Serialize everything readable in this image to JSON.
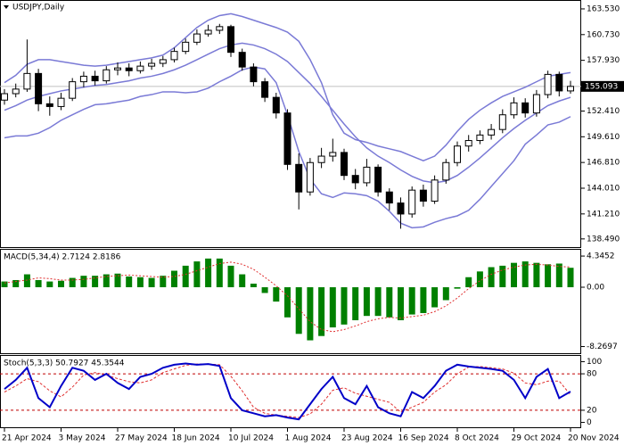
{
  "chart_data": [
    {
      "type": "candlestick",
      "title": "USDJPY,Daily",
      "categories": [
        "21 Apr 2024",
        null,
        null,
        null,
        null,
        "3 May 2024",
        null,
        null,
        null,
        null,
        "27 May 2024",
        null,
        null,
        null,
        null,
        "18 Jun 2024",
        null,
        null,
        null,
        null,
        "10 Jul 2024",
        null,
        null,
        null,
        null,
        "1 Aug 2024",
        null,
        null,
        null,
        null,
        "23 Aug 2024",
        null,
        null,
        null,
        null,
        "16 Sep 2024",
        null,
        null,
        null,
        null,
        "8 Oct 2024",
        null,
        null,
        null,
        null,
        "29 Oct 2024",
        null,
        null,
        null,
        null,
        "20 Nov 2024"
      ],
      "open": [
        153.6,
        154.3,
        154.8,
        156.5,
        153.2,
        152.9,
        153.8,
        155.6,
        156.2,
        155.7,
        156.9,
        157.1,
        156.8,
        157.3,
        157.6,
        158.0,
        158.9,
        159.9,
        160.8,
        161.2,
        161.6,
        158.8,
        157.2,
        155.6,
        153.9,
        152.2,
        146.6,
        143.6,
        146.8,
        147.5,
        147.9,
        145.4,
        144.6,
        146.3,
        143.6,
        142.4,
        141.2,
        143.8,
        142.6,
        144.9,
        146.8,
        148.6,
        149.2,
        149.8,
        150.4,
        152.0,
        153.3,
        152.2,
        154.2,
        156.4,
        154.6
      ],
      "high": [
        154.8,
        155.4,
        160.2,
        157.0,
        154.0,
        154.4,
        156.0,
        156.7,
        156.8,
        157.3,
        157.7,
        157.6,
        157.8,
        158.1,
        158.4,
        159.3,
        160.3,
        161.3,
        161.8,
        161.9,
        161.8,
        159.2,
        157.6,
        156.0,
        154.4,
        152.6,
        147.8,
        147.3,
        148.4,
        149.4,
        148.3,
        146.1,
        147.2,
        146.6,
        144.0,
        143.0,
        144.2,
        144.4,
        145.4,
        147.2,
        149.1,
        149.8,
        150.3,
        151.0,
        152.6,
        153.9,
        153.8,
        154.7,
        156.8,
        156.7,
        155.7
      ],
      "low": [
        153.1,
        153.9,
        154.5,
        152.4,
        151.9,
        152.5,
        153.5,
        155.0,
        155.2,
        155.4,
        156.3,
        156.2,
        156.5,
        156.9,
        157.2,
        157.7,
        158.6,
        159.6,
        160.5,
        160.8,
        158.3,
        156.8,
        155.1,
        153.4,
        151.6,
        146.0,
        141.7,
        143.2,
        146.2,
        146.9,
        144.9,
        143.9,
        144.2,
        143.1,
        141.6,
        139.6,
        140.8,
        142.0,
        142.3,
        144.5,
        146.4,
        148.0,
        148.8,
        149.3,
        150.0,
        151.6,
        151.7,
        151.8,
        153.8,
        154.0,
        154.3
      ],
      "close": [
        154.3,
        154.8,
        156.5,
        153.2,
        152.9,
        153.8,
        155.6,
        156.2,
        155.7,
        156.9,
        157.1,
        156.8,
        157.3,
        157.6,
        158.0,
        158.9,
        159.9,
        160.8,
        161.2,
        161.6,
        158.8,
        157.2,
        155.6,
        153.9,
        152.2,
        146.6,
        143.6,
        146.8,
        147.5,
        147.9,
        145.4,
        144.6,
        146.3,
        143.6,
        142.4,
        141.2,
        143.8,
        142.6,
        144.9,
        146.8,
        148.6,
        149.2,
        149.8,
        150.4,
        152.0,
        153.3,
        152.2,
        154.2,
        156.4,
        154.6,
        155.093
      ],
      "bands": {
        "color": "#7a7ad6",
        "upper": [
          155.5,
          156.3,
          157.5,
          158.0,
          158.0,
          157.8,
          157.6,
          157.4,
          157.3,
          157.4,
          157.6,
          157.8,
          158.0,
          158.2,
          158.5,
          159.3,
          160.4,
          161.5,
          162.3,
          162.8,
          163.0,
          162.7,
          162.3,
          161.9,
          161.5,
          161.0,
          160.0,
          158.0,
          155.5,
          152.0,
          150.0,
          149.3,
          149.0,
          148.6,
          148.3,
          148.0,
          147.5,
          147.0,
          147.5,
          148.7,
          150.2,
          151.5,
          152.5,
          153.3,
          154.0,
          154.5,
          155.0,
          155.6,
          156.2,
          156.4,
          156.6
        ],
        "middle": [
          152.5,
          153.0,
          153.6,
          154.0,
          154.3,
          154.6,
          154.8,
          155.0,
          155.2,
          155.3,
          155.5,
          155.7,
          156.0,
          156.2,
          156.5,
          156.9,
          157.4,
          158.0,
          158.6,
          159.2,
          159.6,
          159.8,
          159.6,
          159.2,
          158.6,
          157.8,
          156.6,
          155.4,
          154.0,
          152.5,
          151.0,
          149.6,
          148.4,
          147.5,
          146.8,
          146.0,
          145.3,
          144.8,
          144.6,
          144.8,
          145.4,
          146.3,
          147.3,
          148.4,
          149.5,
          150.5,
          151.4,
          152.2,
          153.0,
          153.5,
          153.9
        ],
        "lower": [
          149.5,
          149.7,
          149.7,
          150.0,
          150.6,
          151.4,
          152.0,
          152.6,
          153.1,
          153.2,
          153.4,
          153.6,
          154.0,
          154.2,
          154.5,
          154.5,
          154.4,
          154.5,
          154.9,
          155.6,
          156.2,
          156.9,
          157.2,
          157.0,
          155.5,
          152.0,
          148.0,
          145.0,
          143.4,
          143.0,
          143.5,
          143.4,
          143.2,
          142.6,
          141.5,
          140.2,
          139.7,
          139.8,
          140.3,
          140.7,
          141.0,
          141.6,
          142.8,
          144.2,
          145.6,
          147.0,
          148.8,
          149.8,
          150.9,
          151.2,
          151.8
        ]
      },
      "price_line": 155.093,
      "ylim": [
        137.6,
        164.4
      ],
      "yticks": [
        {
          "value": 163.53,
          "label": "163.530"
        },
        {
          "value": 160.73,
          "label": "160.730"
        },
        {
          "value": 157.93,
          "label": "157.930"
        },
        {
          "value": 152.41,
          "label": "152.410"
        },
        {
          "value": 149.61,
          "label": "149.610"
        },
        {
          "value": 146.81,
          "label": "146.810"
        },
        {
          "value": 144.01,
          "label": "144.010"
        },
        {
          "value": 141.21,
          "label": "141.210"
        },
        {
          "value": 138.49,
          "label": "138.490"
        }
      ]
    },
    {
      "type": "macd",
      "title": "MACD(5,34,4) 2.7124 2.8186",
      "color": "#008000",
      "signal_color": "#e03030",
      "values": [
        0.8,
        1.0,
        1.8,
        1.0,
        0.8,
        0.9,
        1.3,
        1.6,
        1.6,
        1.8,
        1.9,
        1.5,
        1.4,
        1.3,
        1.6,
        2.3,
        3.0,
        3.6,
        4.0,
        4.0,
        3.0,
        1.8,
        0.5,
        -0.8,
        -2.0,
        -4.2,
        -6.5,
        -7.4,
        -6.8,
        -5.6,
        -5.2,
        -4.6,
        -4.0,
        -4.0,
        -4.2,
        -4.6,
        -3.8,
        -3.6,
        -2.8,
        -1.8,
        -0.2,
        1.4,
        2.2,
        2.8,
        3.0,
        3.4,
        3.6,
        3.4,
        3.2,
        3.3,
        2.7124
      ],
      "signal": [
        0.6,
        0.8,
        1.0,
        1.3,
        1.2,
        1.0,
        1.0,
        1.1,
        1.3,
        1.5,
        1.6,
        1.7,
        1.6,
        1.5,
        1.4,
        1.5,
        1.8,
        2.3,
        2.8,
        3.3,
        3.5,
        3.2,
        2.5,
        1.4,
        0.2,
        -1.2,
        -3.0,
        -4.8,
        -5.9,
        -6.2,
        -5.9,
        -5.4,
        -4.8,
        -4.4,
        -4.2,
        -4.3,
        -4.1,
        -3.9,
        -3.4,
        -2.6,
        -1.5,
        -0.2,
        0.9,
        1.8,
        2.4,
        2.8,
        3.1,
        3.2,
        3.1,
        2.9,
        2.8186
      ],
      "ylim": [
        -9.2,
        5.1
      ],
      "yticks": [
        4.3452,
        {
          "value": 0,
          "label": "0.00"
        },
        -8.2697
      ]
    },
    {
      "type": "stochastic",
      "title": "Stoch(5,3,3) 50.7927 45.3544",
      "color": "#0000c8",
      "signal_color": "#e03030",
      "values": [
        55,
        70,
        90,
        40,
        25,
        60,
        90,
        85,
        70,
        80,
        65,
        55,
        75,
        80,
        90,
        95,
        97,
        95,
        96,
        93,
        40,
        20,
        15,
        10,
        12,
        8,
        5,
        30,
        55,
        75,
        40,
        30,
        60,
        25,
        15,
        10,
        50,
        40,
        60,
        85,
        95,
        92,
        90,
        88,
        85,
        70,
        40,
        75,
        88,
        40,
        50.7927
      ],
      "signal": [
        50,
        60,
        72,
        67,
        52,
        42,
        58,
        78,
        82,
        78,
        72,
        67,
        65,
        70,
        82,
        88,
        94,
        96,
        96,
        95,
        76,
        52,
        25,
        15,
        12,
        10,
        8,
        14,
        30,
        53,
        57,
        48,
        43,
        38,
        33,
        17,
        25,
        33,
        50,
        62,
        80,
        91,
        92,
        90,
        88,
        81,
        65,
        62,
        68,
        68,
        45.3544
      ],
      "levels": [
        80,
        20
      ],
      "ylim": [
        -8,
        108
      ],
      "yticks": [
        100,
        80,
        20,
        0
      ]
    }
  ]
}
